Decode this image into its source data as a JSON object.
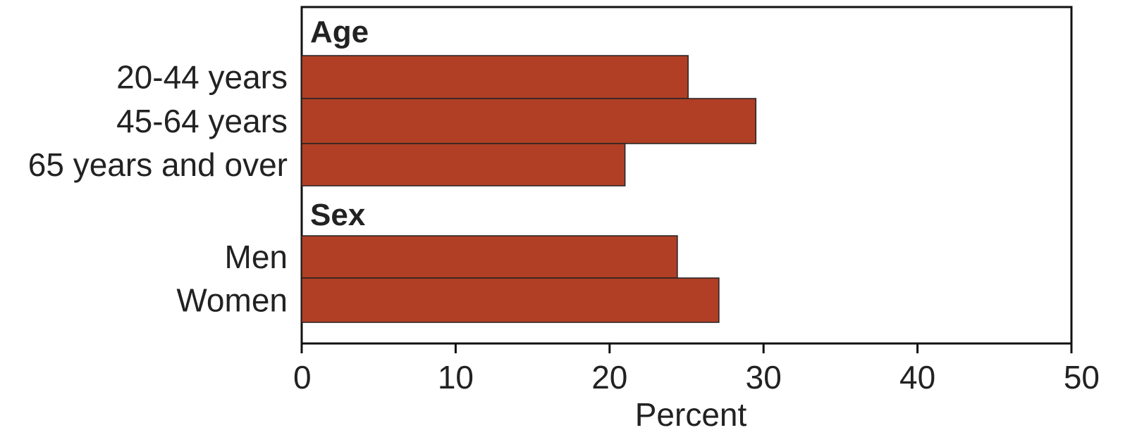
{
  "chart_data": {
    "type": "bar",
    "orientation": "horizontal",
    "groups": [
      {
        "label": "Age",
        "categories": [
          "20-44 years",
          "45-64 years",
          "65 years and over"
        ],
        "values": [
          25.1,
          29.5,
          21.0
        ]
      },
      {
        "label": "Sex",
        "categories": [
          "Men",
          "Women"
        ],
        "values": [
          24.4,
          27.1
        ]
      }
    ],
    "xlabel": "Percent",
    "xlim": [
      0,
      50
    ],
    "xticks": [
      0,
      10,
      20,
      30,
      40,
      50
    ],
    "grid": false,
    "legend": "none",
    "bar_color": "#b03f26"
  }
}
